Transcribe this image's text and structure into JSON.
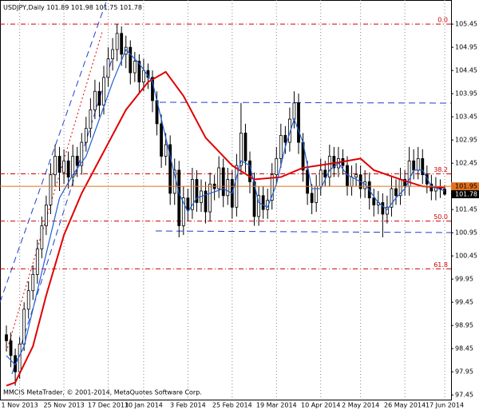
{
  "chart_data": {
    "type": "candlestick",
    "title": "USDJPY,Daily",
    "footer": "MMCIS MetaTrader, © 2001-2014, MetaQuotes Software Corp.",
    "categories": [
      null,
      null,
      null,
      "1 Nov 2013",
      null,
      null,
      null,
      null,
      null,
      null,
      null,
      null,
      null,
      "25 Nov 2013",
      null,
      null,
      null,
      null,
      null,
      null,
      null,
      null,
      null,
      "17 Dec 2013",
      null,
      null,
      null,
      null,
      null,
      null,
      null,
      "10 Jan 2014",
      null,
      null,
      null,
      null,
      null,
      null,
      null,
      null,
      null,
      "3 Feb 2014",
      null,
      null,
      null,
      null,
      null,
      null,
      null,
      null,
      null,
      "25 Feb 2014",
      null,
      null,
      null,
      null,
      null,
      null,
      null,
      null,
      null,
      "19 Mar 2014",
      null,
      null,
      null,
      null,
      null,
      null,
      null,
      null,
      null,
      "10 Apr 2014",
      null,
      null,
      null,
      null,
      null,
      null,
      null,
      null,
      "2 May 2014",
      null,
      null,
      null,
      null,
      null,
      null,
      null,
      null,
      null,
      "26 May 2014",
      null,
      null,
      null,
      null,
      null,
      null,
      null,
      null,
      "17 Jun 2014"
    ],
    "ohlc": [
      [
        98.75,
        98.95,
        98.4,
        98.62
      ],
      [
        98.62,
        98.8,
        98.05,
        98.3
      ],
      [
        98.3,
        98.45,
        97.65,
        97.95
      ],
      [
        97.95,
        98.7,
        97.8,
        98.55
      ],
      [
        98.55,
        99.45,
        98.4,
        99.3
      ],
      [
        99.3,
        99.9,
        99.1,
        99.7
      ],
      [
        99.7,
        100.25,
        99.5,
        100.05
      ],
      [
        100.05,
        100.8,
        99.85,
        100.6
      ],
      [
        100.6,
        101.3,
        100.4,
        101.1
      ],
      [
        101.1,
        101.75,
        100.9,
        101.55
      ],
      [
        101.55,
        102.45,
        101.35,
        102.2
      ],
      [
        102.2,
        102.85,
        101.95,
        102.6
      ],
      [
        102.6,
        102.8,
        101.85,
        102.25
      ],
      [
        102.25,
        102.75,
        102.0,
        102.5
      ],
      [
        102.5,
        102.7,
        101.9,
        102.15
      ],
      [
        102.15,
        102.85,
        101.95,
        102.6
      ],
      [
        102.6,
        102.8,
        102.15,
        102.4
      ],
      [
        102.4,
        103.1,
        102.2,
        102.9
      ],
      [
        102.9,
        103.45,
        102.7,
        103.2
      ],
      [
        103.2,
        103.85,
        103.0,
        103.6
      ],
      [
        103.6,
        104.25,
        103.4,
        104.0
      ],
      [
        104.0,
        104.2,
        103.45,
        103.7
      ],
      [
        103.7,
        104.55,
        103.5,
        104.3
      ],
      [
        104.3,
        104.95,
        104.1,
        104.7
      ],
      [
        104.7,
        105.15,
        104.45,
        104.9
      ],
      [
        104.9,
        105.45,
        104.65,
        105.25
      ],
      [
        105.25,
        105.4,
        104.55,
        104.8
      ],
      [
        104.8,
        105.2,
        104.5,
        104.95
      ],
      [
        104.95,
        105.1,
        104.15,
        104.4
      ],
      [
        104.4,
        104.85,
        104.2,
        104.65
      ],
      [
        104.65,
        104.8,
        103.95,
        104.2
      ],
      [
        104.2,
        104.7,
        104.0,
        104.45
      ],
      [
        104.45,
        104.6,
        104.05,
        104.3
      ],
      [
        104.3,
        104.45,
        103.55,
        103.8
      ],
      [
        103.8,
        104.0,
        103.05,
        103.3
      ],
      [
        103.3,
        103.5,
        102.35,
        102.6
      ],
      [
        102.6,
        103.1,
        102.4,
        102.85
      ],
      [
        102.85,
        103.05,
        101.55,
        101.8
      ],
      [
        101.8,
        102.55,
        101.55,
        102.3
      ],
      [
        102.3,
        102.5,
        100.85,
        101.1
      ],
      [
        101.1,
        101.95,
        100.9,
        101.7
      ],
      [
        101.7,
        101.9,
        101.2,
        101.45
      ],
      [
        101.45,
        102.35,
        101.25,
        102.1
      ],
      [
        102.1,
        102.3,
        101.4,
        101.6
      ],
      [
        101.6,
        102.1,
        101.4,
        101.85
      ],
      [
        101.85,
        102.05,
        101.15,
        101.4
      ],
      [
        101.4,
        102.25,
        101.2,
        102.0
      ],
      [
        102.0,
        102.2,
        101.65,
        101.9
      ],
      [
        101.9,
        102.6,
        101.7,
        102.35
      ],
      [
        102.35,
        102.55,
        101.5,
        101.75
      ],
      [
        101.75,
        102.35,
        101.55,
        102.1
      ],
      [
        102.1,
        102.3,
        101.25,
        101.5
      ],
      [
        101.5,
        102.65,
        101.3,
        102.4
      ],
      [
        102.4,
        103.75,
        102.2,
        103.1
      ],
      [
        103.1,
        103.3,
        102.25,
        102.5
      ],
      [
        102.5,
        102.7,
        101.8,
        102.05
      ],
      [
        102.05,
        102.25,
        101.1,
        101.3
      ],
      [
        101.3,
        101.95,
        101.1,
        101.75
      ],
      [
        101.75,
        101.95,
        101.25,
        101.45
      ],
      [
        101.45,
        101.9,
        101.25,
        101.65
      ],
      [
        101.65,
        102.45,
        101.45,
        102.2
      ],
      [
        102.2,
        102.8,
        102.0,
        102.55
      ],
      [
        102.55,
        103.3,
        102.35,
        103.05
      ],
      [
        103.05,
        103.25,
        102.65,
        102.9
      ],
      [
        102.9,
        103.65,
        102.7,
        103.4
      ],
      [
        103.4,
        104.0,
        103.2,
        103.75
      ],
      [
        103.75,
        103.95,
        102.65,
        102.9
      ],
      [
        102.9,
        103.1,
        102.05,
        102.3
      ],
      [
        102.3,
        102.5,
        101.55,
        101.8
      ],
      [
        101.8,
        102.0,
        101.35,
        101.6
      ],
      [
        101.6,
        102.2,
        101.4,
        101.95
      ],
      [
        101.95,
        102.55,
        101.75,
        102.3
      ],
      [
        102.3,
        102.5,
        101.95,
        102.15
      ],
      [
        102.15,
        102.85,
        101.95,
        102.6
      ],
      [
        102.6,
        102.8,
        102.15,
        102.35
      ],
      [
        102.35,
        102.8,
        102.15,
        102.55
      ],
      [
        102.55,
        102.75,
        102.2,
        102.4
      ],
      [
        102.4,
        102.6,
        101.75,
        101.95
      ],
      [
        101.95,
        102.4,
        101.75,
        102.15
      ],
      [
        102.15,
        102.45,
        101.95,
        102.2
      ],
      [
        102.2,
        102.4,
        101.7,
        101.9
      ],
      [
        101.9,
        102.3,
        101.7,
        102.05
      ],
      [
        102.05,
        102.25,
        101.45,
        101.7
      ],
      [
        101.7,
        101.9,
        101.3,
        101.55
      ],
      [
        101.55,
        101.85,
        101.35,
        101.6
      ],
      [
        101.6,
        101.8,
        100.85,
        101.35
      ],
      [
        101.35,
        101.75,
        101.15,
        101.5
      ],
      [
        101.5,
        102.15,
        101.3,
        101.9
      ],
      [
        101.9,
        102.1,
        101.55,
        101.75
      ],
      [
        101.75,
        102.35,
        101.55,
        102.1
      ],
      [
        102.1,
        102.3,
        101.75,
        101.95
      ],
      [
        101.95,
        102.8,
        101.75,
        102.5
      ],
      [
        102.5,
        102.75,
        102.1,
        102.3
      ],
      [
        102.3,
        102.8,
        102.1,
        102.55
      ],
      [
        102.55,
        102.75,
        102.0,
        102.2
      ],
      [
        102.2,
        102.4,
        101.8,
        102.0
      ],
      [
        102.0,
        102.2,
        101.65,
        101.85
      ],
      [
        101.85,
        102.15,
        101.65,
        101.95
      ],
      [
        101.95,
        102.1,
        101.7,
        101.89
      ],
      [
        101.89,
        101.98,
        101.75,
        101.78
      ]
    ],
    "series": [
      {
        "color": "#e00000",
        "x": [
          0,
          2,
          6,
          9,
          13,
          17,
          22,
          27,
          32,
          36,
          40,
          45,
          51,
          56,
          62,
          67,
          74,
          80,
          83,
          89,
          94,
          99
        ],
        "values": [
          97.65,
          97.72,
          98.5,
          99.6,
          100.9,
          101.8,
          102.7,
          103.6,
          104.2,
          104.42,
          103.9,
          103.0,
          102.4,
          102.1,
          102.15,
          102.35,
          102.45,
          102.55,
          102.3,
          102.1,
          101.95,
          101.92
        ]
      },
      {
        "color": "#1f5fd0",
        "x": [
          0,
          2,
          4,
          6,
          9,
          12,
          15,
          18,
          21,
          24,
          27,
          30,
          33,
          35,
          37,
          39,
          41,
          43,
          46,
          49,
          51,
          53,
          55,
          57,
          59,
          61,
          63,
          65,
          67,
          69,
          71,
          73,
          75,
          77,
          79,
          81,
          84,
          86,
          88,
          90,
          92,
          94,
          96,
          99
        ],
        "values": [
          98.3,
          98.1,
          98.5,
          99.3,
          100.5,
          101.7,
          102.2,
          102.6,
          103.4,
          104.2,
          104.9,
          104.6,
          104.2,
          103.4,
          102.6,
          101.8,
          101.4,
          101.7,
          101.8,
          101.9,
          101.8,
          102.5,
          102.4,
          101.6,
          101.5,
          102.0,
          102.8,
          103.4,
          102.9,
          101.9,
          101.9,
          102.3,
          102.45,
          102.2,
          102.1,
          102.0,
          101.6,
          101.45,
          101.7,
          101.9,
          102.3,
          102.3,
          101.95,
          101.85
        ]
      }
    ],
    "fib_levels": [
      {
        "label": "0.0",
        "price": 105.45
      },
      {
        "label": "38.2",
        "price": 102.22
      },
      {
        "label": "50.0",
        "price": 101.2
      },
      {
        "label": "61.8",
        "price": 100.17
      }
    ],
    "price_lines": [
      {
        "value": 101.95,
        "color": "#e07020"
      },
      {
        "value": 101.78,
        "color": "#000000"
      }
    ],
    "ylim": [
      97.35,
      105.97
    ],
    "yticks": [
      105.45,
      104.95,
      104.45,
      103.95,
      103.45,
      102.95,
      102.45,
      101.45,
      100.95,
      100.45,
      99.95,
      99.45,
      98.95,
      98.45,
      97.95,
      97.45
    ]
  }
}
